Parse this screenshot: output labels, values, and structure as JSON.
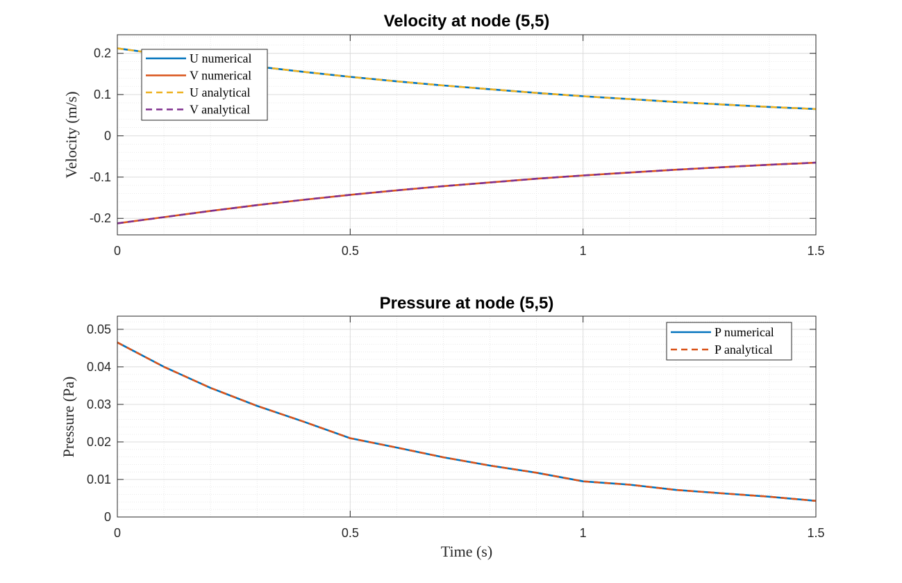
{
  "chart_data": [
    {
      "type": "line",
      "title": "Velocity at node (5,5)",
      "xlabel": "",
      "ylabel": "Velocity (m/s)",
      "xlim": [
        0,
        1.5
      ],
      "ylim": [
        -0.24,
        0.245
      ],
      "xticks": [
        0,
        0.5,
        1,
        1.5
      ],
      "xtick_labels": [
        "0",
        "0.5",
        "1",
        "1.5"
      ],
      "yticks": [
        -0.2,
        -0.1,
        0,
        0.1,
        0.2
      ],
      "ytick_labels": [
        "-0.2",
        "-0.1",
        "0",
        "0.1",
        "0.2"
      ],
      "grid": true,
      "minor_grid": true,
      "legend_location": "top-left",
      "x": [
        0,
        0.1,
        0.2,
        0.3,
        0.4,
        0.5,
        0.6,
        0.7,
        0.8,
        0.9,
        1.0,
        1.1,
        1.2,
        1.3,
        1.4,
        1.5
      ],
      "series": [
        {
          "name": "U numerical",
          "color": "#0072BD",
          "dash": false,
          "values": [
            0.212,
            0.197,
            0.182,
            0.168,
            0.155,
            0.143,
            0.132,
            0.122,
            0.113,
            0.104,
            0.096,
            0.089,
            0.082,
            0.076,
            0.07,
            0.065
          ]
        },
        {
          "name": "V numerical",
          "color": "#D95319",
          "dash": false,
          "values": [
            -0.212,
            -0.197,
            -0.182,
            -0.168,
            -0.155,
            -0.143,
            -0.132,
            -0.122,
            -0.113,
            -0.104,
            -0.096,
            -0.089,
            -0.082,
            -0.076,
            -0.07,
            -0.065
          ]
        },
        {
          "name": "U analytical",
          "color": "#EDB120",
          "dash": true,
          "values": [
            0.212,
            0.197,
            0.182,
            0.168,
            0.155,
            0.143,
            0.132,
            0.122,
            0.113,
            0.104,
            0.096,
            0.089,
            0.082,
            0.076,
            0.07,
            0.065
          ]
        },
        {
          "name": "V analytical",
          "color": "#7E2F8E",
          "dash": true,
          "values": [
            -0.212,
            -0.197,
            -0.182,
            -0.168,
            -0.155,
            -0.143,
            -0.132,
            -0.122,
            -0.113,
            -0.104,
            -0.096,
            -0.089,
            -0.082,
            -0.076,
            -0.07,
            -0.065
          ]
        }
      ]
    },
    {
      "type": "line",
      "title": "Pressure at node (5,5)",
      "xlabel": "Time (s)",
      "ylabel": "Pressure (Pa)",
      "xlim": [
        0,
        1.5
      ],
      "ylim": [
        0,
        0.0535
      ],
      "xticks": [
        0,
        0.5,
        1,
        1.5
      ],
      "xtick_labels": [
        "0",
        "0.5",
        "1",
        "1.5"
      ],
      "yticks": [
        0,
        0.01,
        0.02,
        0.03,
        0.04,
        0.05
      ],
      "ytick_labels": [
        "0",
        "0.01",
        "0.02",
        "0.03",
        "0.04",
        "0.05"
      ],
      "grid": true,
      "minor_grid": true,
      "legend_location": "top-right",
      "x": [
        0,
        0.1,
        0.2,
        0.3,
        0.4,
        0.5,
        0.6,
        0.7,
        0.8,
        0.9,
        1.0,
        1.1,
        1.2,
        1.3,
        1.4,
        1.5
      ],
      "series": [
        {
          "name": "P numerical",
          "color": "#0072BD",
          "dash": false,
          "values": [
            0.0465,
            0.04,
            0.0344,
            0.0296,
            0.0254,
            0.021,
            0.0185,
            0.0159,
            0.0137,
            0.0118,
            0.0095,
            0.0086,
            0.0072,
            0.0063,
            0.0054,
            0.0043
          ]
        },
        {
          "name": "P analytical",
          "color": "#D95319",
          "dash": true,
          "values": [
            0.0465,
            0.04,
            0.0344,
            0.0296,
            0.0254,
            0.021,
            0.0185,
            0.0159,
            0.0137,
            0.0118,
            0.0095,
            0.0086,
            0.0072,
            0.0063,
            0.0054,
            0.0043
          ]
        }
      ]
    }
  ]
}
